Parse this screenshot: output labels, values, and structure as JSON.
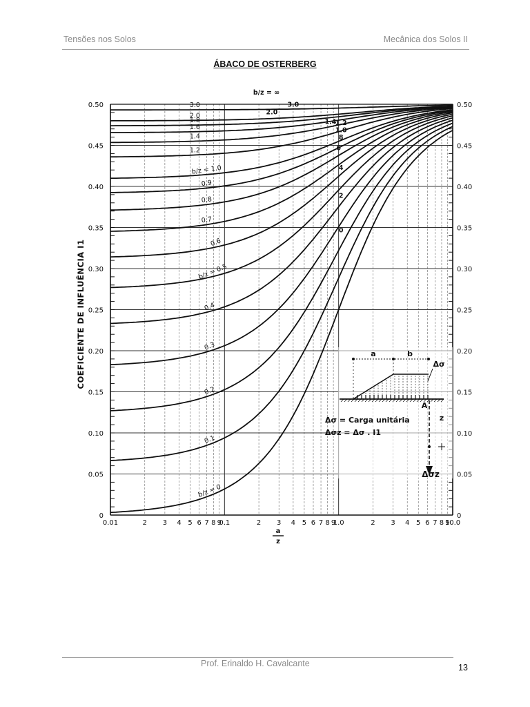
{
  "header": {
    "left": "Tensões nos Solos",
    "right": "Mecânica dos Solos II"
  },
  "title": "ÁBACO DE OSTERBERG",
  "footer": {
    "author": "Prof. Erinaldo H. Cavalcante",
    "page": "13"
  },
  "chart_data": {
    "type": "line",
    "title": "b/z = ∞",
    "xlabel": "a/z",
    "ylabel": "COEFICIENTE DE INFLUÊNCIA I1",
    "xscale": "log",
    "xlim": [
      0.01,
      10.0
    ],
    "ylim": [
      0,
      0.5
    ],
    "grid": true,
    "x_tick_labels": [
      "0.01",
      "2",
      "3",
      "4",
      "5",
      "6",
      "7",
      "8",
      "9",
      "0.1",
      "2",
      "3",
      "4",
      "5",
      "6",
      "7",
      "8",
      "9",
      "1.0",
      "2",
      "3",
      "4",
      "5",
      "6",
      "7",
      "8",
      "9",
      "10.0"
    ],
    "y_tick_labels_left": [
      "0",
      "0.05",
      "0.10",
      "0.15",
      "0.20",
      "0.25",
      "0.30",
      "0.35",
      "0.40",
      "0.45",
      "0.50"
    ],
    "y_tick_labels_right": [
      "0",
      "0.05",
      "0.10",
      "0.15",
      "0.20",
      "0.25",
      "0.30",
      "0.35",
      "0.40",
      "0.45",
      "0.50"
    ],
    "x_sample": [
      0.01,
      0.02,
      0.05,
      0.1,
      0.2,
      0.5,
      1.0,
      2.0,
      5.0,
      10.0
    ],
    "series": [
      {
        "name": "b/z = 0",
        "b": 0,
        "label": "b/z = 0",
        "values": [
          0.003,
          0.006,
          0.016,
          0.032,
          0.063,
          0.148,
          0.25,
          0.352,
          0.437,
          0.468
        ]
      },
      {
        "name": "b/z = 0.1",
        "b": 0.1,
        "label": "0.1",
        "values": [
          0.066,
          0.069,
          0.078,
          0.094,
          0.123,
          0.195,
          0.283,
          0.374,
          0.446,
          0.472
        ]
      },
      {
        "name": "b/z = 0.2",
        "b": 0.2,
        "label": "0.2",
        "values": [
          0.127,
          0.129,
          0.137,
          0.15,
          0.175,
          0.238,
          0.316,
          0.394,
          0.455,
          0.476
        ]
      },
      {
        "name": "b/z = 0.3",
        "b": 0.3,
        "label": "0.3",
        "values": [
          0.184,
          0.186,
          0.192,
          0.202,
          0.222,
          0.275,
          0.344,
          0.412,
          0.463,
          0.48
        ]
      },
      {
        "name": "b/z = 0.4",
        "b": 0.4,
        "label": "0.4",
        "values": [
          0.234,
          0.235,
          0.24,
          0.248,
          0.264,
          0.307,
          0.367,
          0.427,
          0.47,
          0.483
        ]
      },
      {
        "name": "b/z = 0.5",
        "b": 0.5,
        "label": "b/z = 0.5",
        "values": [
          0.277,
          0.278,
          0.281,
          0.287,
          0.299,
          0.334,
          0.386,
          0.439,
          0.475,
          0.486
        ]
      },
      {
        "name": "b/z = 0.6",
        "b": 0.6,
        "label": "0.6",
        "values": [
          0.314,
          0.314,
          0.317,
          0.321,
          0.33,
          0.357,
          0.401,
          0.449,
          0.479,
          0.488
        ]
      },
      {
        "name": "b/z = 0.7",
        "b": 0.7,
        "label": "0.7",
        "values": [
          0.344,
          0.344,
          0.346,
          0.349,
          0.356,
          0.377,
          0.414,
          0.457,
          0.483,
          0.49
        ]
      },
      {
        "name": "b/z = 0.8",
        "b": 0.8,
        "label": "0.8",
        "values": [
          0.37,
          0.37,
          0.371,
          0.373,
          0.378,
          0.394,
          0.425,
          0.463,
          0.486,
          0.492
        ]
      },
      {
        "name": "b/z = 0.9",
        "b": 0.9,
        "label": "0.9",
        "values": [
          0.391,
          0.391,
          0.392,
          0.393,
          0.397,
          0.408,
          0.434,
          0.468,
          0.488,
          0.493
        ]
      },
      {
        "name": "b/z = 1.0",
        "b": 1.0,
        "label": "b/z = 1.0",
        "values": [
          0.409,
          0.409,
          0.409,
          0.41,
          0.412,
          0.421,
          0.442,
          0.472,
          0.49,
          0.494
        ]
      },
      {
        "name": "b/z = 1.2",
        "b": 1.2,
        "label": "1.2",
        "values": [
          0.434,
          0.434,
          0.434,
          0.435,
          0.436,
          0.44,
          0.454,
          0.478,
          0.492,
          0.496
        ]
      },
      {
        "name": "b/z = 1.4",
        "b": 1.4,
        "label": "1.4",
        "values": [
          0.451,
          0.451,
          0.451,
          0.451,
          0.452,
          0.454,
          0.464,
          0.482,
          0.494,
          0.497
        ]
      },
      {
        "name": "b/z = 1.6",
        "b": 1.6,
        "label": "1.6",
        "values": [
          0.463,
          0.463,
          0.463,
          0.463,
          0.463,
          0.465,
          0.471,
          0.485,
          0.495,
          0.497
        ]
      },
      {
        "name": "b/z = 1.8",
        "b": 1.8,
        "label": "1.8",
        "values": [
          0.472,
          0.472,
          0.472,
          0.472,
          0.472,
          0.473,
          0.477,
          0.487,
          0.496,
          0.498
        ]
      },
      {
        "name": "b/z = 2.0",
        "b": 2.0,
        "label": "2.0",
        "values": [
          0.478,
          0.478,
          0.478,
          0.478,
          0.478,
          0.479,
          0.481,
          0.489,
          0.496,
          0.498
        ]
      },
      {
        "name": "b/z = 3.0",
        "b": 3.0,
        "label": "3.0",
        "values": [
          0.491,
          0.491,
          0.491,
          0.491,
          0.491,
          0.491,
          0.492,
          0.494,
          0.498,
          0.499
        ]
      }
    ],
    "right_side_curve_labels": [
      "3.0",
      "2.0",
      "1.4",
      "1.2",
      "1.0",
      "8",
      "6",
      "4",
      "2",
      "0"
    ],
    "top_label": "b/z = ∞",
    "inset_diagram": {
      "labels": [
        "a",
        "b",
        "Δσ",
        "A",
        "z",
        "Δσz"
      ],
      "legend_line1": "Δσ = Carga unitária",
      "legend_line2": "Δσz = Δσ . I1"
    }
  }
}
